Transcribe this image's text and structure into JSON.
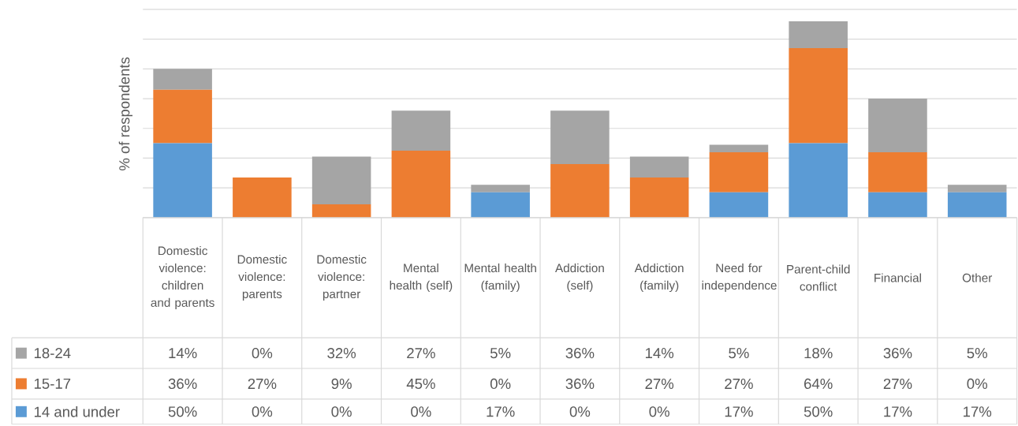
{
  "chart_data": {
    "type": "bar",
    "stacked": true,
    "ylabel": "% of respondents",
    "categories": [
      "Domestic violence: children and parents",
      "Domestic violence: parents",
      "Domestic violence: partner",
      "Mental health (self)",
      "Mental health (family)",
      "Addiction (self)",
      "Addiction (family)",
      "Need for independence",
      "Parent-child conflict",
      "Financial",
      "Other"
    ],
    "series": [
      {
        "name": "14 and under",
        "color": "#5b9bd5",
        "values": [
          50,
          0,
          0,
          0,
          17,
          0,
          0,
          17,
          50,
          17,
          17
        ],
        "value_labels": [
          "50%",
          "0%",
          "0%",
          "0%",
          "17%",
          "0%",
          "0%",
          "17%",
          "50%",
          "17%",
          "17%"
        ]
      },
      {
        "name": "15-17",
        "color": "#ed7d31",
        "values": [
          36,
          27,
          9,
          45,
          0,
          36,
          27,
          27,
          64,
          27,
          0
        ],
        "value_labels": [
          "36%",
          "27%",
          "9%",
          "45%",
          "0%",
          "36%",
          "27%",
          "27%",
          "64%",
          "27%",
          "0%"
        ]
      },
      {
        "name": "18-24",
        "color": "#a5a5a5",
        "values": [
          14,
          0,
          32,
          27,
          5,
          36,
          14,
          5,
          18,
          36,
          5
        ],
        "value_labels": [
          "14%",
          "0%",
          "32%",
          "27%",
          "5%",
          "36%",
          "14%",
          "5%",
          "18%",
          "36%",
          "5%"
        ]
      }
    ],
    "ylim": [
      0,
      140
    ],
    "yticks": [
      {
        "value": 0,
        "label": null
      },
      {
        "value": 20,
        "label": null
      },
      {
        "value": 40,
        "label": null
      },
      {
        "value": 60,
        "label": null
      },
      {
        "value": 80,
        "label": null
      },
      {
        "value": 100,
        "label": null
      },
      {
        "value": 120,
        "label": null
      },
      {
        "value": 140,
        "label": null
      }
    ],
    "grid": "y",
    "tick_labels": "x",
    "legend": "bottom left"
  }
}
